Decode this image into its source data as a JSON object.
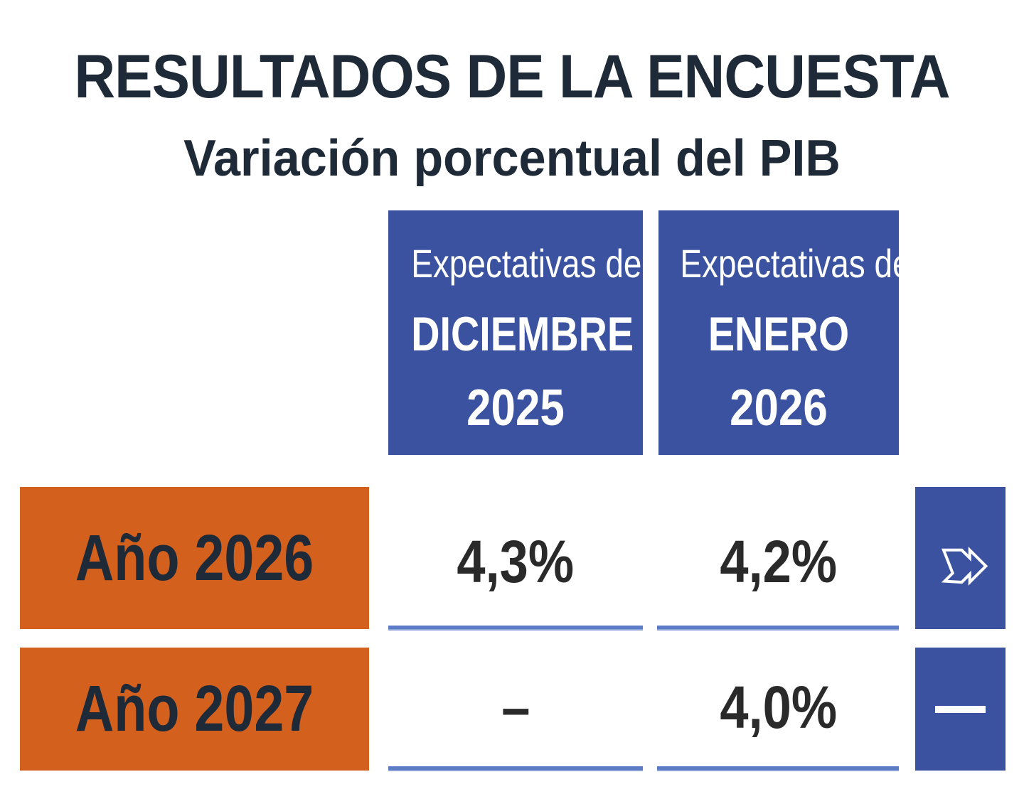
{
  "chart_data": {
    "type": "table",
    "title": "RESULTADOS DE LA ENCUESTA",
    "subtitle": "Variación porcentual del PIB",
    "columns": [
      {
        "pre": "Expectativas de",
        "month": "DICIEMBRE",
        "year": "2025"
      },
      {
        "pre": "Expectativas de",
        "month": "ENERO",
        "year": "2026"
      }
    ],
    "rows": [
      {
        "label": "Año 2026",
        "values": [
          "4,3%",
          "4,2%"
        ],
        "trend": "down-arrow-icon"
      },
      {
        "label": "Año 2027",
        "values": [
          "–",
          "4,0%"
        ],
        "trend": "dash-icon"
      }
    ]
  },
  "colors": {
    "header_blue": "#3b52a0",
    "label_orange": "#d4601e",
    "text_dark": "#1f2a38"
  }
}
